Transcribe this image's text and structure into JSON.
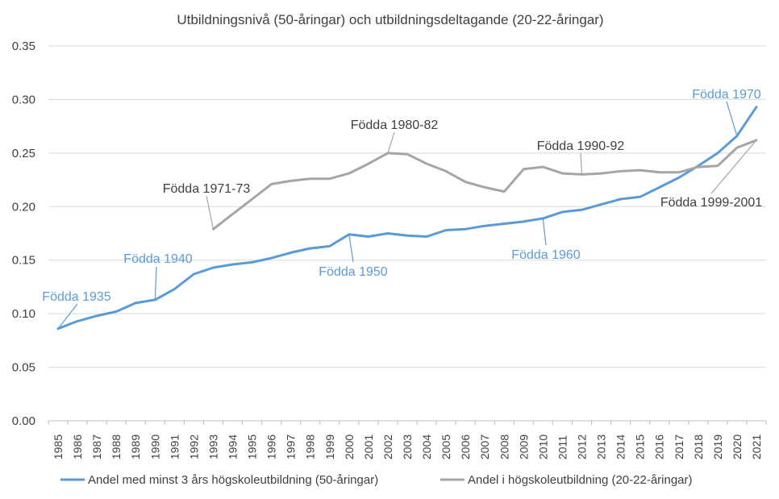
{
  "chart_data": {
    "type": "line",
    "title": "Utbildningsnivå (50-åringar) och utbildningsdeltagande (20-22-åringar)",
    "xlabel": "",
    "ylabel": "",
    "ylim": [
      0,
      0.35
    ],
    "yticks": [
      "0.00",
      "0.05",
      "0.10",
      "0.15",
      "0.20",
      "0.25",
      "0.30",
      "0.35"
    ],
    "categories": [
      "1985",
      "1986",
      "1987",
      "1988",
      "1989",
      "1990",
      "1991",
      "1992",
      "1993",
      "1994",
      "1995",
      "1996",
      "1997",
      "1998",
      "1999",
      "2000",
      "2001",
      "2002",
      "2003",
      "2004",
      "2005",
      "2006",
      "2007",
      "2008",
      "2009",
      "2010",
      "2011",
      "2012",
      "2013",
      "2014",
      "2015",
      "2016",
      "2017",
      "2018",
      "2019",
      "2020",
      "2021"
    ],
    "series": [
      {
        "name": "Andel med minst 3 års högskoleutbildning (50-åringar)",
        "color": "#5b9bd5",
        "values": [
          0.086,
          0.093,
          0.098,
          0.102,
          0.11,
          0.113,
          0.123,
          0.137,
          0.143,
          0.146,
          0.148,
          0.152,
          0.157,
          0.161,
          0.163,
          0.174,
          0.172,
          0.175,
          0.173,
          0.172,
          0.178,
          0.179,
          0.182,
          0.184,
          0.186,
          0.189,
          0.195,
          0.197,
          0.202,
          0.207,
          0.209,
          0.218,
          0.227,
          0.238,
          0.25,
          0.266,
          0.293
        ]
      },
      {
        "name": "Andel i högskoleutbildning (20-22-åringar)",
        "color": "#a5a5a5",
        "values": [
          null,
          null,
          null,
          null,
          null,
          null,
          null,
          null,
          0.179,
          0.193,
          0.207,
          0.221,
          0.224,
          0.226,
          0.226,
          0.231,
          0.24,
          0.25,
          0.249,
          0.24,
          0.233,
          0.223,
          0.218,
          0.214,
          0.235,
          0.237,
          0.231,
          0.23,
          0.231,
          0.233,
          0.234,
          0.232,
          0.232,
          0.237,
          0.238,
          0.255,
          0.262
        ]
      }
    ],
    "annotations": [
      {
        "text": "Födda 1935",
        "series": 0,
        "year": "1985",
        "color": "blue"
      },
      {
        "text": "Födda 1940",
        "series": 0,
        "year": "1990",
        "color": "blue"
      },
      {
        "text": "Födda 1950",
        "series": 0,
        "year": "2000",
        "color": "blue"
      },
      {
        "text": "Födda 1960",
        "series": 0,
        "year": "2010",
        "color": "blue"
      },
      {
        "text": "Födda 1970",
        "series": 0,
        "year": "2020",
        "color": "blue"
      },
      {
        "text": "Födda 1971-73",
        "series": 1,
        "year": "1993",
        "color": "gray"
      },
      {
        "text": "Födda 1980-82",
        "series": 1,
        "year": "2002",
        "color": "gray"
      },
      {
        "text": "Födda 1990-92",
        "series": 1,
        "year": "2012",
        "color": "gray"
      },
      {
        "text": "Födda 1999-2001",
        "series": 1,
        "year": "2021",
        "color": "gray"
      }
    ],
    "legend": "bottom"
  }
}
